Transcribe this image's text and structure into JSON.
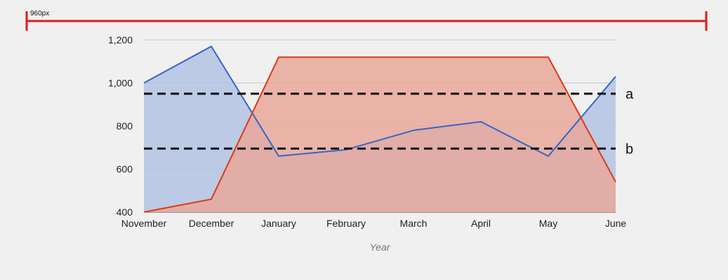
{
  "ruler": {
    "label": "960px"
  },
  "chart_data": {
    "type": "area",
    "categories": [
      "November",
      "December",
      "January",
      "February",
      "March",
      "April",
      "May",
      "June"
    ],
    "series": [
      {
        "values": [
          1000,
          1170,
          660,
          690,
          780,
          820,
          660,
          1030
        ],
        "color": "#3366cc",
        "fill": "#b3c3e3"
      },
      {
        "values": [
          400,
          460,
          1120,
          1120,
          1120,
          1120,
          1120,
          540
        ],
        "color": "#dc3912",
        "fill": "#e8a89b"
      }
    ],
    "xlabel": "Year",
    "ylabel": "",
    "ylim": [
      400,
      1200
    ],
    "yticks": [
      400,
      600,
      800,
      1000,
      1200
    ],
    "ytick_labels": [
      "400",
      "600",
      "800",
      "1,000",
      "1,200"
    ],
    "grid": true,
    "reference_lines": [
      {
        "label": "a",
        "value": 950
      },
      {
        "label": "b",
        "value": 695
      }
    ]
  }
}
